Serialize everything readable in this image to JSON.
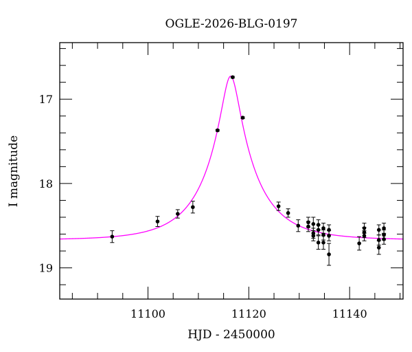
{
  "chart_data": {
    "type": "scatter",
    "title": "OGLE-2026-BLG-0197",
    "xlabel": "HJD - 2450000",
    "ylabel": "I magnitude",
    "xlim": [
      11082.5,
      11150.6
    ],
    "ylim": [
      16.33,
      19.37
    ],
    "y_inverted": true,
    "xticks": [
      11100,
      11120,
      11140
    ],
    "xtick_labels": [
      "11100",
      "11120",
      "11140"
    ],
    "yticks": [
      17,
      18,
      19
    ],
    "ytick_labels": [
      "17",
      "18",
      "19"
    ],
    "grid": false,
    "colors": {
      "points": "#000000",
      "model": "#ff00ff"
    },
    "points": [
      {
        "t": 11092.9,
        "mag": 18.63,
        "err": 0.07
      },
      {
        "t": 11101.9,
        "mag": 18.45,
        "err": 0.06
      },
      {
        "t": 11105.9,
        "mag": 18.36,
        "err": 0.05
      },
      {
        "t": 11108.9,
        "mag": 18.28,
        "err": 0.07
      },
      {
        "t": 11113.8,
        "mag": 17.37,
        "err": 0.01
      },
      {
        "t": 11116.8,
        "mag": 16.74,
        "err": 0.01
      },
      {
        "t": 11118.8,
        "mag": 17.22,
        "err": 0.01
      },
      {
        "t": 11125.9,
        "mag": 18.27,
        "err": 0.05
      },
      {
        "t": 11127.8,
        "mag": 18.35,
        "err": 0.05
      },
      {
        "t": 11129.8,
        "mag": 18.5,
        "err": 0.07
      },
      {
        "t": 11131.8,
        "mag": 18.46,
        "err": 0.06
      },
      {
        "t": 11131.8,
        "mag": 18.51,
        "err": 0.06
      },
      {
        "t": 11132.8,
        "mag": 18.48,
        "err": 0.08
      },
      {
        "t": 11132.8,
        "mag": 18.59,
        "err": 0.06
      },
      {
        "t": 11132.8,
        "mag": 18.62,
        "err": 0.06
      },
      {
        "t": 11133.8,
        "mag": 18.49,
        "err": 0.06
      },
      {
        "t": 11133.8,
        "mag": 18.55,
        "err": 0.06
      },
      {
        "t": 11133.8,
        "mag": 18.7,
        "err": 0.08
      },
      {
        "t": 11134.8,
        "mag": 18.53,
        "err": 0.06
      },
      {
        "t": 11134.8,
        "mag": 18.61,
        "err": 0.06
      },
      {
        "t": 11134.8,
        "mag": 18.7,
        "err": 0.08
      },
      {
        "t": 11135.9,
        "mag": 18.55,
        "err": 0.06
      },
      {
        "t": 11135.9,
        "mag": 18.62,
        "err": 0.06
      },
      {
        "t": 11135.9,
        "mag": 18.84,
        "err": 0.13
      },
      {
        "t": 11141.9,
        "mag": 18.71,
        "err": 0.08
      },
      {
        "t": 11142.9,
        "mag": 18.53,
        "err": 0.06
      },
      {
        "t": 11142.9,
        "mag": 18.58,
        "err": 0.06
      },
      {
        "t": 11142.9,
        "mag": 18.62,
        "err": 0.06
      },
      {
        "t": 11145.8,
        "mag": 18.55,
        "err": 0.06
      },
      {
        "t": 11145.8,
        "mag": 18.67,
        "err": 0.06
      },
      {
        "t": 11145.8,
        "mag": 18.76,
        "err": 0.08
      },
      {
        "t": 11146.8,
        "mag": 18.53,
        "err": 0.06
      },
      {
        "t": 11146.8,
        "mag": 18.61,
        "err": 0.06
      },
      {
        "t": 11146.8,
        "mag": 18.66,
        "err": 0.06
      }
    ],
    "model": {
      "type": "point-lens",
      "t0": 11116.4,
      "u0": 0.169,
      "tE": 10.0,
      "baseline_mag": 18.67
    }
  }
}
